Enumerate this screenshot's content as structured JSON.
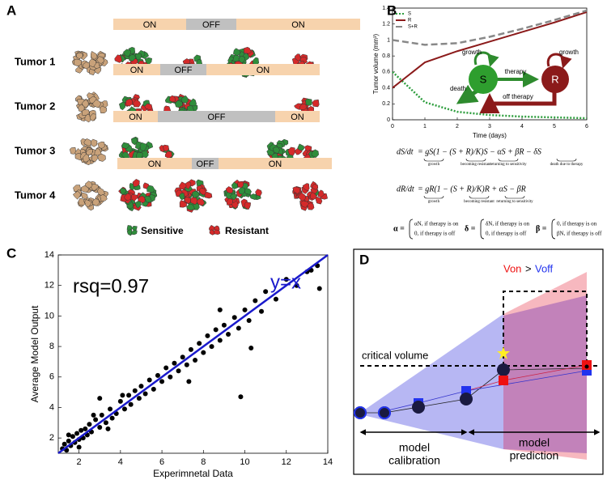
{
  "panel_labels": [
    "A",
    "B",
    "C",
    "D"
  ],
  "panel_a": {
    "tumors": [
      {
        "label": "Tumor 1",
        "segments": [
          "ON",
          "OFF",
          "ON"
        ]
      },
      {
        "label": "Tumor 2",
        "segments": [
          "ON",
          "OFF",
          "ON"
        ]
      },
      {
        "label": "Tumor 3",
        "segments": [
          "ON",
          "OFF",
          "ON"
        ]
      },
      {
        "label": "Tumor 4",
        "segments": [
          "ON",
          "OFF",
          "ON"
        ]
      }
    ],
    "legend": [
      "Sensitive",
      "Resistant"
    ]
  },
  "panel_b_diagram": {
    "nodes": [
      "S",
      "R"
    ],
    "labels": {
      "growth_s": "growth",
      "growth_r": "growth",
      "therapy": "therapy",
      "death": "death",
      "off_therapy": "off therapy"
    }
  },
  "equations": [
    {
      "lhs": "dS/dt",
      "rhs": "= gS(1 − (S + R)/K)S − αS + βR − δS",
      "notes": [
        "growth",
        "becoming resistant",
        "returning to sensitivity",
        "death due to therapy"
      ]
    },
    {
      "lhs": "dR/dt",
      "rhs": "= gR(1 − (S + R)/K)R + αS − βR",
      "notes": [
        "growth",
        "becoming resistant",
        "returning to sensitivity"
      ]
    }
  ],
  "definitions": [
    {
      "symbol": "α =",
      "cases": [
        "αN, if therapy is on",
        "0, if therapy is off"
      ]
    },
    {
      "symbol": "δ =",
      "cases": [
        "δN, if therapy is on",
        "0, if therapy is off"
      ]
    },
    {
      "symbol": "β =",
      "cases": [
        "0, if therapy is on",
        "βN, if therapy is off"
      ]
    }
  ],
  "panel_d": {
    "critical": "critical volume",
    "von": "Von",
    "gt": ">",
    "voff": "Voff",
    "calibration": [
      "model",
      "calibration"
    ],
    "prediction": [
      "model",
      "prediction"
    ]
  },
  "chart_data": [
    {
      "type": "line",
      "x_label": "Time (days)",
      "y_label": "Tumor volume (mm³)",
      "x": [
        0,
        1,
        2,
        3,
        4,
        5,
        6
      ],
      "series": [
        {
          "name": "S",
          "color": "#2e9e3e",
          "style": "dotted",
          "values": [
            0.6,
            0.22,
            0.1,
            0.06,
            0.04,
            0.03,
            0.02
          ]
        },
        {
          "name": "R",
          "color": "#8b1a1a",
          "style": "solid",
          "values": [
            0.4,
            0.72,
            0.86,
            0.98,
            1.1,
            1.22,
            1.35
          ]
        },
        {
          "name": "S+R",
          "color": "#888888",
          "style": "dashed",
          "values": [
            1.0,
            0.94,
            0.96,
            1.04,
            1.14,
            1.25,
            1.37
          ]
        }
      ],
      "xlim": [
        0,
        6
      ],
      "xticks": [
        0,
        1,
        2,
        3,
        4,
        5,
        6
      ],
      "ylim": [
        0,
        1.4
      ],
      "yticks": [
        0,
        0.2,
        0.4,
        0.6,
        0.8,
        1,
        1.2,
        1.4
      ],
      "legend": "upper left"
    },
    {
      "type": "scatter",
      "x_label": "Experimnetal Data",
      "y_label": "Average Model Output",
      "annotations": [
        "rsq=0.97",
        "y=x"
      ],
      "line_color": "#1a1acc",
      "color": "#000000",
      "x": [
        1.2,
        1.3,
        1.4,
        1.5,
        1.6,
        1.7,
        1.8,
        1.9,
        2.0,
        2.1,
        2.2,
        2.3,
        2.4,
        2.5,
        2.6,
        2.8,
        3.0,
        3.1,
        3.3,
        3.5,
        3.6,
        3.8,
        4.0,
        4.2,
        4.4,
        4.5,
        4.7,
        4.9,
        5.0,
        5.2,
        5.4,
        5.6,
        5.8,
        6.0,
        6.2,
        6.4,
        6.6,
        6.8,
        7.0,
        7.2,
        7.4,
        7.6,
        7.8,
        8.0,
        8.2,
        8.4,
        8.6,
        8.8,
        9.0,
        9.2,
        9.5,
        9.7,
        10.0,
        10.2,
        10.5,
        10.8,
        11.0,
        11.5,
        12.0,
        12.5,
        13.0,
        13.2,
        13.5,
        9.8,
        8.8,
        10.3,
        13.6,
        3.0,
        7.3,
        1.5,
        2.0,
        2.7,
        3.4,
        4.1
      ],
      "y": [
        1.3,
        1.6,
        1.2,
        1.8,
        1.5,
        2.1,
        1.7,
        2.3,
        1.9,
        2.5,
        2.0,
        2.6,
        2.2,
        2.9,
        2.4,
        3.2,
        2.7,
        3.5,
        3.0,
        3.9,
        3.3,
        3.6,
        4.4,
        3.9,
        4.8,
        4.2,
        5.1,
        4.6,
        5.4,
        4.9,
        5.8,
        5.2,
        6.1,
        5.7,
        6.6,
        6.0,
        6.9,
        6.4,
        7.3,
        6.8,
        7.8,
        7.1,
        8.2,
        7.6,
        8.7,
        8.0,
        9.1,
        8.4,
        9.4,
        8.8,
        9.9,
        9.2,
        10.4,
        9.7,
        11.0,
        10.3,
        11.6,
        11.1,
        12.4,
        12.0,
        12.9,
        13.0,
        13.3,
        4.7,
        10.4,
        7.9,
        11.8,
        4.6,
        5.7,
        2.2,
        1.4,
        3.5,
        2.6,
        4.8
      ],
      "xlim": [
        1,
        14
      ],
      "xticks": [
        2,
        4,
        6,
        8,
        10,
        12,
        14
      ],
      "ylim": [
        1,
        14
      ],
      "yticks": [
        2,
        4,
        6,
        8,
        10,
        12,
        14
      ]
    }
  ]
}
